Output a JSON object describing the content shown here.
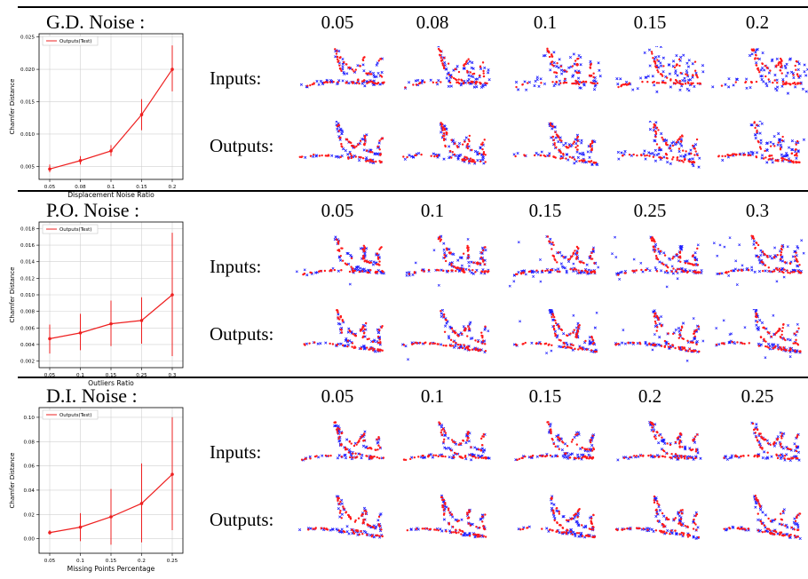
{
  "row_labels": {
    "inputs": "Inputs:",
    "outputs": "Outputs:"
  },
  "colors": {
    "points_a": "#ff1a1a",
    "points_b": "#1a1aff",
    "line": "#ee2020",
    "grid": "#d0d0d0"
  },
  "sections": [
    {
      "title": "G.D. Noise :",
      "levels": [
        "0.05",
        "0.08",
        "0.1",
        "0.15",
        "0.2"
      ]
    },
    {
      "title": "P.O. Noise :",
      "levels": [
        "0.05",
        "0.1",
        "0.15",
        "0.25",
        "0.3"
      ]
    },
    {
      "title": "D.I. Noise  :",
      "levels": [
        "0.05",
        "0.1",
        "0.15",
        "0.2",
        "0.25"
      ]
    }
  ],
  "chart_data": [
    {
      "type": "line",
      "legend": "Outputs(Test)",
      "legend_position": "top-left",
      "grid": true,
      "xlabel": "Displacement Noise Ratio",
      "ylabel": "Chamfer Distance",
      "x": [
        "0.05",
        "0.08",
        "0.1",
        "0.15",
        "0.2"
      ],
      "y": [
        0.0046,
        0.0059,
        0.0074,
        0.013,
        0.02
      ],
      "err_low": [
        0.0041,
        0.0053,
        0.0066,
        0.0106,
        0.0166
      ],
      "err_high": [
        0.0053,
        0.0066,
        0.0083,
        0.0154,
        0.0237
      ],
      "ylim": [
        0.003,
        0.0255
      ],
      "yticks": [
        "0.005",
        "0.010",
        "0.015",
        "0.020",
        "0.025"
      ]
    },
    {
      "type": "line",
      "legend": "Outputs(Test)",
      "legend_position": "top-left",
      "grid": true,
      "xlabel": "Outliers Ratio",
      "ylabel": "Chamfer Distance",
      "x": [
        "0.05",
        "0.1",
        "0.15",
        "0.25",
        "0.3"
      ],
      "y": [
        0.0047,
        0.0054,
        0.0065,
        0.0069,
        0.01
      ],
      "err_low": [
        0.0029,
        0.0033,
        0.0038,
        0.0041,
        0.0026
      ],
      "err_high": [
        0.0064,
        0.0077,
        0.0093,
        0.0097,
        0.0175
      ],
      "ylim": [
        0.0012,
        0.0188
      ],
      "yticks": [
        "0.002",
        "0.004",
        "0.006",
        "0.008",
        "0.010",
        "0.012",
        "0.014",
        "0.016",
        "0.018"
      ]
    },
    {
      "type": "line",
      "legend": "Outputs(Test)",
      "legend_position": "top-left",
      "grid": true,
      "xlabel": "Missing Points Percentage",
      "ylabel": "Chamfer Distance",
      "x": [
        "0.05",
        "0.1",
        "0.15",
        "0.2",
        "0.25"
      ],
      "y": [
        0.005,
        0.0095,
        0.018,
        0.029,
        0.053
      ],
      "err_low": [
        0.0035,
        -0.002,
        -0.005,
        -0.003,
        0.007
      ],
      "err_high": [
        0.007,
        0.021,
        0.041,
        0.062,
        0.1
      ],
      "ylim": [
        -0.012,
        0.108
      ],
      "yticks": [
        "0.00",
        "0.02",
        "0.04",
        "0.06",
        "0.08",
        "0.10"
      ]
    }
  ]
}
